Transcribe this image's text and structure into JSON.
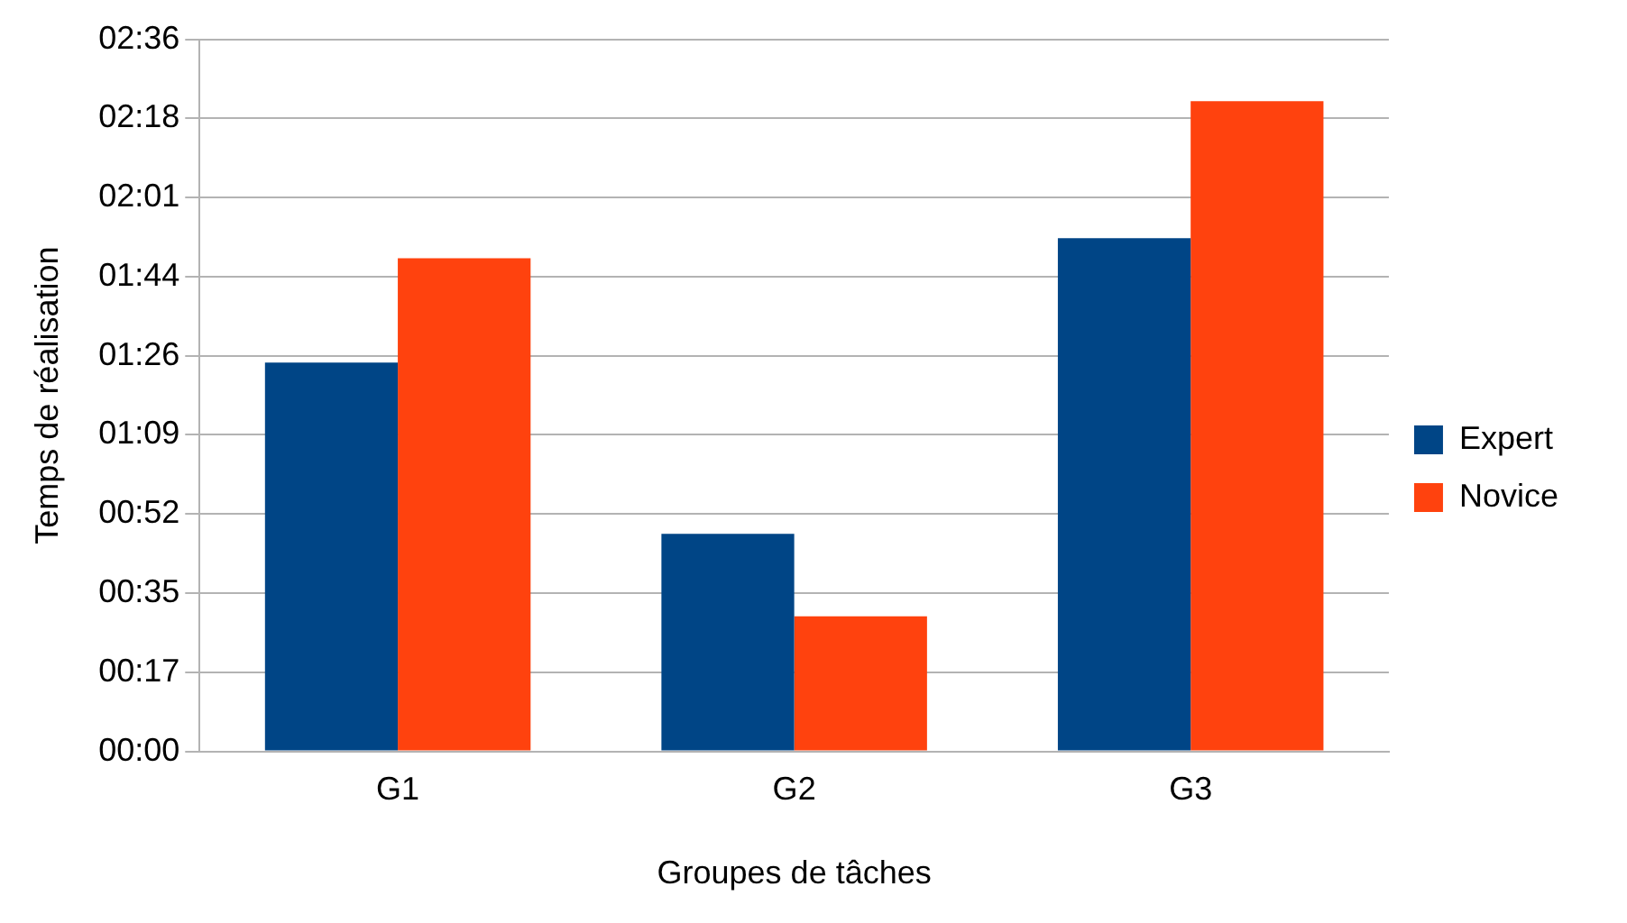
{
  "chart_data": {
    "type": "bar",
    "xlabel": "Groupes de tâches",
    "ylabel": "Temps de réalisation",
    "categories": [
      "G1",
      "G2",
      "G3"
    ],
    "series": [
      {
        "name": "Expert",
        "color": "#004586",
        "values": [
          84.9,
          47.5,
          112.1
        ]
      },
      {
        "name": "Novice",
        "color": "#ff420e",
        "values": [
          107.7,
          29.5,
          142.0
        ]
      }
    ],
    "ylim": [
      0,
      155.52
    ],
    "yticks": [
      {
        "value": 0,
        "label": "00:00"
      },
      {
        "value": 17.28,
        "label": "00:17"
      },
      {
        "value": 34.56,
        "label": "00:35"
      },
      {
        "value": 51.84,
        "label": "00:52"
      },
      {
        "value": 69.12,
        "label": "01:09"
      },
      {
        "value": 86.4,
        "label": "01:26"
      },
      {
        "value": 103.68,
        "label": "01:44"
      },
      {
        "value": 120.96,
        "label": "02:01"
      },
      {
        "value": 138.24,
        "label": "02:18"
      },
      {
        "value": 155.52,
        "label": "02:36"
      }
    ],
    "grid": "y",
    "legend": "right"
  }
}
